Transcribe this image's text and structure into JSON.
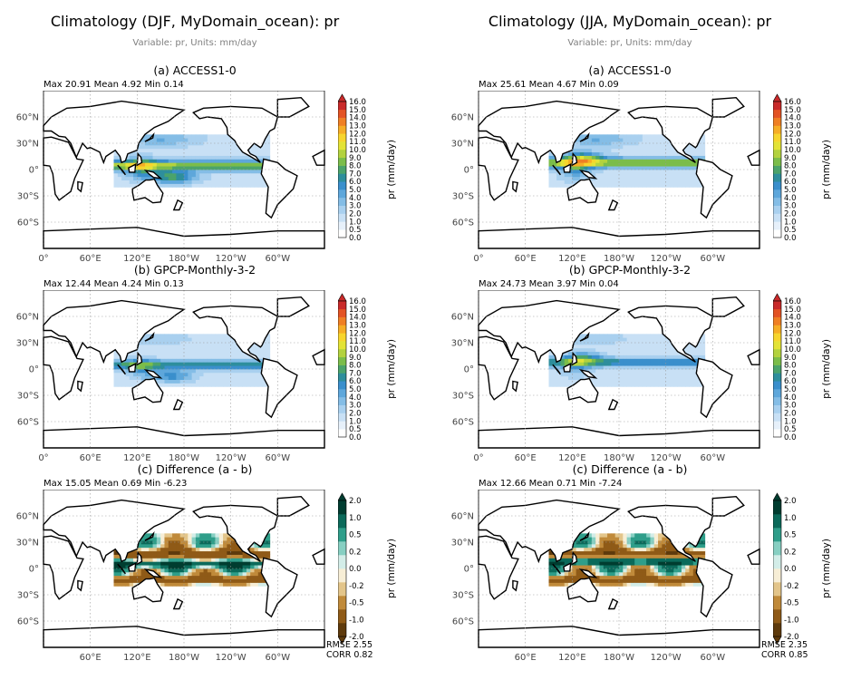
{
  "columns": [
    {
      "title": "Climatology (DJF, MyDomain_ocean): pr",
      "subtitle": "Variable: pr, Units: mm/day",
      "panels": [
        {
          "key": "a",
          "title": "(a) ACCESS1-0",
          "stats": "Max 20.91 Mean 4.92 Min 0.14",
          "kind": "abs"
        },
        {
          "key": "b",
          "title": "(b) GPCP-Monthly-3-2",
          "stats": "Max 12.44 Mean 4.24 Min 0.13",
          "kind": "abs"
        },
        {
          "key": "c",
          "title": "(c) Difference (a - b)",
          "stats": "Max 15.05 Mean 0.69 Min -6.23",
          "kind": "diff"
        }
      ],
      "metrics": {
        "rmse": "RMSE 2.55",
        "corr": "CORR 0.82"
      }
    },
    {
      "title": "Climatology (JJA, MyDomain_ocean): pr",
      "subtitle": "Variable: pr, Units: mm/day",
      "panels": [
        {
          "key": "a",
          "title": "(a) ACCESS1-0",
          "stats": "Max 25.61 Mean 4.67 Min 0.09",
          "kind": "abs"
        },
        {
          "key": "b",
          "title": "(b) GPCP-Monthly-3-2",
          "stats": "Max 24.73 Mean 3.97 Min 0.04",
          "kind": "abs"
        },
        {
          "key": "c",
          "title": "(c) Difference (a - b)",
          "stats": "Max 12.66 Mean 0.71 Min -7.24",
          "kind": "diff"
        }
      ],
      "metrics": {
        "rmse": "RMSE 2.35",
        "corr": "CORR 0.85"
      }
    }
  ],
  "map_axes": {
    "lat_ticks": [
      "60°N",
      "30°N",
      "0°",
      "30°S",
      "60°S"
    ],
    "lat_values": [
      60,
      30,
      0,
      -30,
      -60
    ],
    "lon_ticks_full": [
      "0°",
      "60°E",
      "120°E",
      "180°W",
      "120°W",
      "60°W"
    ],
    "lon_ticks_diff": [
      "60°E",
      "120°E",
      "180°W",
      "120°W",
      "60°W"
    ],
    "lon_values": [
      0,
      60,
      120,
      180,
      240,
      300
    ],
    "lat_range": [
      -90,
      90
    ],
    "lon_range": [
      0,
      360
    ],
    "grid": true
  },
  "chart_data": [
    {
      "type": "heatmap",
      "title": "(a) ACCESS1-0",
      "season": "DJF",
      "stats": {
        "max": 20.91,
        "mean": 4.92,
        "min": 0.14
      },
      "colorbar": {
        "label": "pr (mm/day)",
        "ticks": [
          "0.0",
          "0.5",
          "1.0",
          "2.0",
          "3.0",
          "4.0",
          "5.0",
          "6.0",
          "7.0",
          "8.0",
          "9.0",
          "10.0",
          "11.0",
          "12.0",
          "13.0",
          "14.0",
          "15.0",
          "16.0"
        ],
        "colors": [
          "#ffffff",
          "#e6f0fa",
          "#c8e0f5",
          "#a9d0ef",
          "#84bde6",
          "#5ea7db",
          "#3a8fcc",
          "#2e8e9c",
          "#4ba36b",
          "#7bbd4a",
          "#b3d23e",
          "#e3e336",
          "#f7d52d",
          "#f6ad26",
          "#ef7f24",
          "#e35324",
          "#c92a2a"
        ]
      },
      "region": {
        "lon": [
          90,
          290
        ],
        "lat": [
          -20,
          40
        ]
      }
    },
    {
      "type": "heatmap",
      "title": "(b) GPCP-Monthly-3-2",
      "season": "DJF",
      "stats": {
        "max": 12.44,
        "mean": 4.24,
        "min": 0.13
      },
      "colorbar": {
        "label": "pr (mm/day)"
      },
      "region": {
        "lon": [
          90,
          290
        ],
        "lat": [
          -20,
          40
        ]
      }
    },
    {
      "type": "heatmap",
      "title": "(c) Difference (a - b)",
      "season": "DJF",
      "stats": {
        "max": 15.05,
        "mean": 0.69,
        "min": -6.23,
        "rmse": 2.55,
        "corr": 0.82
      },
      "colorbar": {
        "label": "pr (mm/day)",
        "ticks": [
          "-2.0",
          "-1.0",
          "-0.5",
          "-0.2",
          "0.0",
          "0.2",
          "0.5",
          "1.0",
          "2.0"
        ],
        "colors": [
          "#5e3a0c",
          "#8f5a17",
          "#c08a3a",
          "#e3c58a",
          "#f7eed6",
          "#d3ede8",
          "#87cfc2",
          "#2f9e8a",
          "#0b6a5a",
          "#003d30"
        ]
      },
      "region": {
        "lon": [
          90,
          290
        ],
        "lat": [
          -20,
          40
        ]
      }
    },
    {
      "type": "heatmap",
      "title": "(a) ACCESS1-0",
      "season": "JJA",
      "stats": {
        "max": 25.61,
        "mean": 4.67,
        "min": 0.09
      },
      "colorbar": {
        "label": "pr (mm/day)"
      },
      "region": {
        "lon": [
          90,
          290
        ],
        "lat": [
          -20,
          40
        ]
      }
    },
    {
      "type": "heatmap",
      "title": "(b) GPCP-Monthly-3-2",
      "season": "JJA",
      "stats": {
        "max": 24.73,
        "mean": 3.97,
        "min": 0.04
      },
      "colorbar": {
        "label": "pr (mm/day)"
      },
      "region": {
        "lon": [
          90,
          290
        ],
        "lat": [
          -20,
          40
        ]
      }
    },
    {
      "type": "heatmap",
      "title": "(c) Difference (a - b)",
      "season": "JJA",
      "stats": {
        "max": 12.66,
        "mean": 0.71,
        "min": -7.24,
        "rmse": 2.35,
        "corr": 0.85
      },
      "colorbar": {
        "label": "pr (mm/day)"
      },
      "region": {
        "lon": [
          90,
          290
        ],
        "lat": [
          -20,
          40
        ]
      }
    }
  ]
}
